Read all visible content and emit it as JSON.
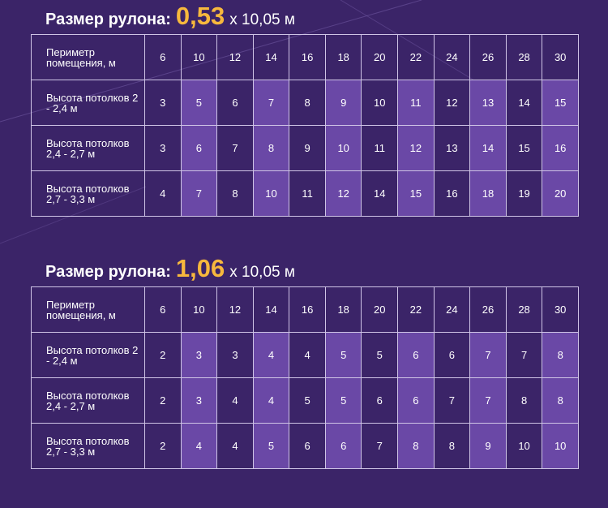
{
  "tables": [
    {
      "title_prefix": "Размер рулона:",
      "title_value": "0,53",
      "title_suffix": "х 10,05 м",
      "header": {
        "label": "Периметр помещения, м",
        "values": [
          "6",
          "10",
          "12",
          "14",
          "16",
          "18",
          "20",
          "22",
          "24",
          "26",
          "28",
          "30"
        ]
      },
      "rows": [
        {
          "label": "Высота потолков 2 - 2,4 м",
          "values": [
            "3",
            "5",
            "6",
            "7",
            "8",
            "9",
            "10",
            "11",
            "12",
            "13",
            "14",
            "15"
          ]
        },
        {
          "label": "Высота потолков 2,4 - 2,7 м",
          "values": [
            "3",
            "6",
            "7",
            "8",
            "9",
            "10",
            "11",
            "12",
            "13",
            "14",
            "15",
            "16"
          ]
        },
        {
          "label": "Высота потолков 2,7 - 3,3 м",
          "values": [
            "4",
            "7",
            "8",
            "10",
            "11",
            "12",
            "14",
            "15",
            "16",
            "18",
            "19",
            "20"
          ]
        }
      ]
    },
    {
      "title_prefix": "Размер рулона:",
      "title_value": "1,06",
      "title_suffix": "х 10,05 м",
      "header": {
        "label": "Периметр помещения, м",
        "values": [
          "6",
          "10",
          "12",
          "14",
          "16",
          "18",
          "20",
          "22",
          "24",
          "26",
          "28",
          "30"
        ]
      },
      "rows": [
        {
          "label": "Высота потолков 2 - 2,4 м",
          "values": [
            "2",
            "3",
            "3",
            "4",
            "4",
            "5",
            "5",
            "6",
            "6",
            "7",
            "7",
            "8"
          ]
        },
        {
          "label": "Высота потолков 2,4 - 2,7 м",
          "values": [
            "2",
            "3",
            "4",
            "4",
            "5",
            "5",
            "6",
            "6",
            "7",
            "7",
            "8",
            "8"
          ]
        },
        {
          "label": "Высота потолков 2,7 - 3,3 м",
          "values": [
            "2",
            "4",
            "4",
            "5",
            "6",
            "6",
            "7",
            "8",
            "8",
            "9",
            "10",
            "10"
          ]
        }
      ]
    }
  ],
  "colors": {
    "background": "#3b2468",
    "accent": "#f7b83d",
    "highlight_cell": "#6a48a6",
    "grid": "#cfc4e6"
  }
}
